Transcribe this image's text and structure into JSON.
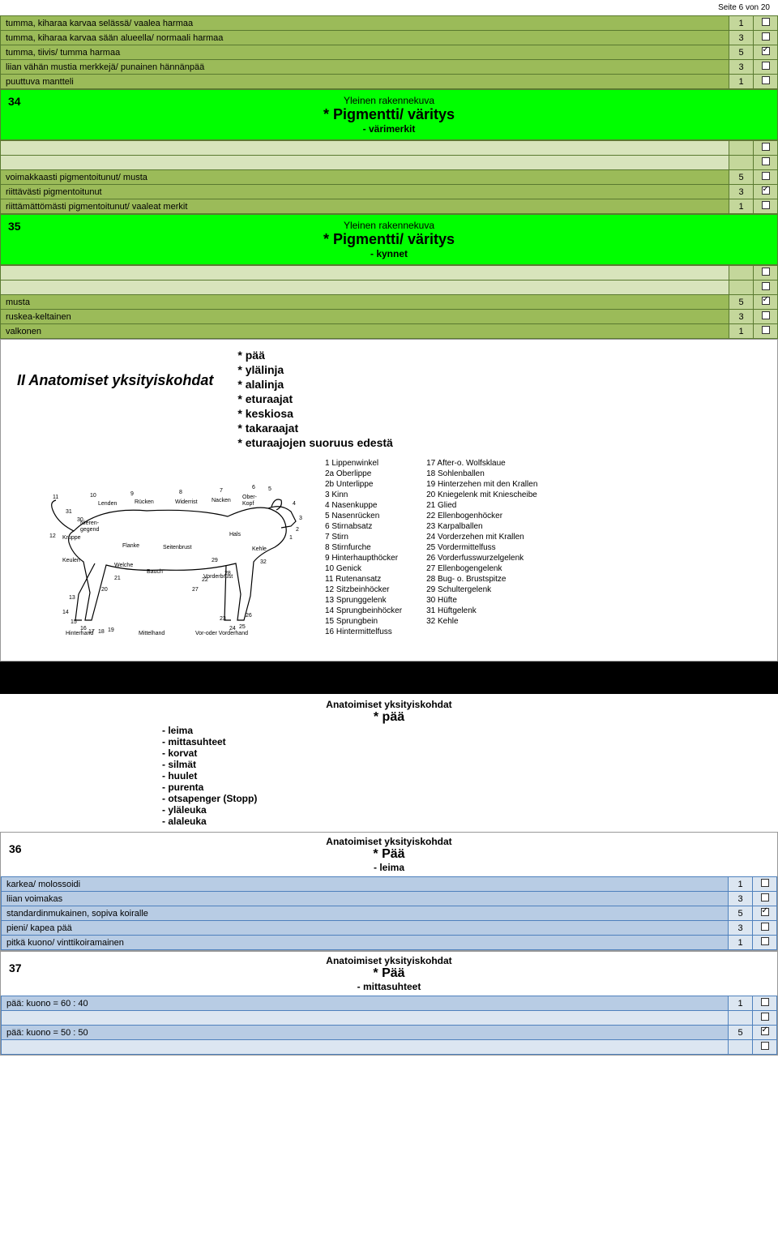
{
  "page_header": "Seite 6 von 20",
  "colors": {
    "dark_green": "#9bbb59",
    "light_green": "#c4d79b",
    "bright_green": "#00ff00",
    "blue": "#b8cce4",
    "light_blue": "#dce6f1"
  },
  "top_table": {
    "rows": [
      {
        "label": "tumma, kiharaa karvaa selässä/ vaalea harmaa",
        "score": "1",
        "checked": false
      },
      {
        "label": "tumma, kiharaa karvaa sään alueella/ normaali harmaa",
        "score": "3",
        "checked": false
      },
      {
        "label": "tumma, tiivis/ tumma harmaa",
        "score": "5",
        "checked": true
      },
      {
        "label": "liian vähän mustia merkkejä/ punainen hännänpää",
        "score": "3",
        "checked": false
      },
      {
        "label": "puuttuva mantteli",
        "score": "1",
        "checked": false
      }
    ]
  },
  "section34": {
    "num": "34",
    "yrk": "Yleinen rakennekuva",
    "title": "* Pigmentti/ väritys",
    "sub": "- värimerkit",
    "rows": [
      {
        "label": "",
        "score": "",
        "checked": false
      },
      {
        "label": "",
        "score": "",
        "checked": false
      },
      {
        "label": "voimakkaasti pigmentoitunut/ musta",
        "score": "5",
        "checked": false
      },
      {
        "label": "riittävästi pigmentoitunut",
        "score": "3",
        "checked": true
      },
      {
        "label": "riittämättömästi pigmentoitunut/ vaaleat merkit",
        "score": "1",
        "checked": false
      }
    ]
  },
  "section35": {
    "num": "35",
    "yrk": "Yleinen rakennekuva",
    "title": "* Pigmentti/ väritys",
    "sub": "- kynnet",
    "rows": [
      {
        "label": "",
        "score": "",
        "checked": false
      },
      {
        "label": "",
        "score": "",
        "checked": false
      },
      {
        "label": "musta",
        "score": "5",
        "checked": true
      },
      {
        "label": "ruskea-keltainen",
        "score": "3",
        "checked": false
      },
      {
        "label": "valkonen",
        "score": "1",
        "checked": false
      }
    ]
  },
  "anatomy": {
    "heading": "II Anatomiset yksityiskohdat",
    "items": [
      "* pää",
      "* ylälinja",
      "* alalinja",
      "* eturaajat",
      "* keskiosa",
      "* takaraajat",
      "* eturaajojen suoruus edestä"
    ],
    "legend_left": [
      "1 Lippenwinkel",
      "2a Oberlippe",
      "2b Unterlippe",
      "3 Kinn",
      "4 Nasenkuppe",
      "5 Nasenrücken",
      "6 Stirnabsatz",
      "7 Stirn",
      "8 Stirnfurche",
      "9 Hinterhaupthöcker",
      "10 Genick",
      "11 Rutenansatz",
      "12 Sitzbeinhöcker",
      "13 Sprunggelenk",
      "14 Sprungbeinhöcker",
      "15 Sprungbein",
      "16 Hintermittelfuss"
    ],
    "legend_right": [
      "17 After-o. Wolfsklaue",
      "18 Sohlenballen",
      "19 Hinterzehen mit den Krallen",
      "20 Kniegelenk mit Kniescheibe",
      "21 Glied",
      "22 Ellenbogenhöcker",
      "23 Karpalballen",
      "24 Vorderzehen mit Krallen",
      "25 Vordermittelfuss",
      "26 Vorderfusswurzelgelenk",
      "27 Ellenbogengelenk",
      "28 Bug- o. Brustspitze",
      "29 Schultergelenk",
      "30 Hüfte",
      "31 Hüftgelenk",
      "32 Kehle"
    ],
    "dog_labels": [
      "Lenden",
      "Rücken",
      "Widerrist",
      "Nacken",
      "Ober-Kopf",
      "Nierengegend",
      "Kruppe",
      "Flanke",
      "Seitenbrust",
      "Hals",
      "Kehle",
      "Keulen",
      "Welche",
      "Bauch",
      "Vorderbrust",
      "Hinterhand",
      "Mittelhand",
      "Vor-oder Vorderhand"
    ]
  },
  "paa_section": {
    "cat": "Anatoimiset yksityiskohdat",
    "main": "* pää",
    "items": [
      "- leima",
      "- mittasuhteet",
      "- korvat",
      "- silmät",
      "- huulet",
      "- purenta",
      "- otsapenger (Stopp)",
      "- yläleuka",
      "- alaleuka"
    ]
  },
  "section36": {
    "num": "36",
    "cat": "Anatoimiset yksityiskohdat",
    "title": "* Pää",
    "sub": "- leima",
    "rows": [
      {
        "label": "karkea/ molossoidi",
        "score": "1",
        "checked": false
      },
      {
        "label": "liian voimakas",
        "score": "3",
        "checked": false
      },
      {
        "label": "standardinmukainen, sopiva koiralle",
        "score": "5",
        "checked": true
      },
      {
        "label": "pieni/ kapea pää",
        "score": "3",
        "checked": false
      },
      {
        "label": "pitkä kuono/ vinttikoiramainen",
        "score": "1",
        "checked": false
      }
    ]
  },
  "section37": {
    "num": "37",
    "cat": "Anatoimiset yksityiskohdat",
    "title": "* Pää",
    "sub": "- mittasuhteet",
    "rows": [
      {
        "label": "pää: kuono = 60 : 40",
        "score": "1",
        "checked": false
      },
      {
        "label": "",
        "score": "",
        "checked": false
      },
      {
        "label": "pää: kuono = 50 : 50",
        "score": "5",
        "checked": true
      },
      {
        "label": "",
        "score": "",
        "checked": false
      }
    ]
  }
}
